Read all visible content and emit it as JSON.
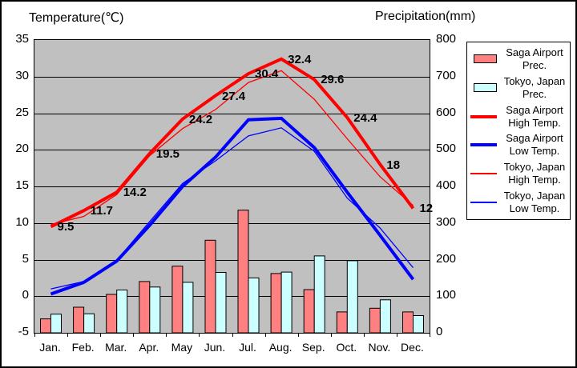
{
  "page": {
    "background": "#FFFFFF",
    "frame_border_color": "#000000"
  },
  "chart_data": {
    "type": "combo-bar-line",
    "categories": [
      "Jan.",
      "Feb.",
      "Mar.",
      "Apr.",
      "May",
      "Jun.",
      "Jul.",
      "Aug.",
      "Sep.",
      "Oct.",
      "Nov.",
      "Dec."
    ],
    "temp_axis": {
      "title": "Temperature(℃)",
      "side": "left",
      "min": -5,
      "max": 35,
      "step": 5,
      "ticks": [
        35,
        30,
        25,
        20,
        15,
        10,
        5,
        0,
        -5
      ]
    },
    "precip_axis": {
      "title": "Precipitation(mm)",
      "side": "right",
      "min": 0,
      "max": 800,
      "step": 100,
      "ticks": [
        800,
        700,
        600,
        500,
        400,
        300,
        200,
        100,
        0
      ]
    },
    "plot_background": "#C0C0C0",
    "gridline_color": "#000000",
    "grid": "horizontal",
    "legend_position": "right",
    "series": [
      {
        "name": "Saga Airport Prec.",
        "legend_lines": [
          "Saga Airport",
          "Prec."
        ],
        "type": "bar",
        "axis": "precip",
        "color": "#FF8080",
        "values": [
          38,
          70,
          105,
          140,
          182,
          253,
          335,
          162,
          118,
          57,
          67,
          57
        ]
      },
      {
        "name": "Tokyo, Japan Prec.",
        "legend_lines": [
          "Tokyo, Japan",
          "Prec."
        ],
        "type": "bar",
        "axis": "precip",
        "color": "#CCFFFF",
        "values": [
          51,
          52,
          117,
          125,
          138,
          165,
          150,
          166,
          210,
          197,
          90,
          47
        ]
      },
      {
        "name": "Saga Airport High Temp.",
        "legend_lines": [
          "Saga Airport",
          "High Temp."
        ],
        "type": "line",
        "axis": "temp",
        "color": "#FF0000",
        "thickness": "thick",
        "values": [
          9.5,
          11.7,
          14.2,
          19.5,
          24.2,
          27.4,
          30.4,
          32.4,
          29.6,
          24.4,
          18,
          12
        ],
        "point_labels": [
          "9.5",
          "11.7",
          "14.2",
          "19.5",
          "24.2",
          "27.4",
          "30.4",
          "32.4",
          "29.6",
          "24.4",
          "18",
          "12"
        ]
      },
      {
        "name": "Saga Airport Low Temp.",
        "legend_lines": [
          "Saga Airport",
          "Low Temp."
        ],
        "type": "line",
        "axis": "temp",
        "color": "#0000FF",
        "thickness": "thick",
        "values": [
          0.3,
          1.9,
          4.8,
          9.7,
          15.0,
          19.0,
          24.1,
          24.3,
          20.3,
          14.2,
          8.3,
          2.3
        ]
      },
      {
        "name": "Tokyo, Japan High Temp.",
        "legend_lines": [
          "Tokyo, Japan",
          "High Temp."
        ],
        "type": "line",
        "axis": "temp",
        "color": "#FF0000",
        "thickness": "thin",
        "values": [
          9.8,
          10.9,
          13.9,
          19.2,
          22.9,
          25.5,
          29.2,
          30.8,
          26.9,
          21.5,
          16.3,
          12.4
        ]
      },
      {
        "name": "Tokyo, Japan Low Temp.",
        "legend_lines": [
          "Tokyo, Japan",
          "Low Temp."
        ],
        "type": "line",
        "axis": "temp",
        "color": "#0000FF",
        "thickness": "thin",
        "values": [
          1.0,
          2.0,
          4.9,
          10.2,
          15.4,
          18.5,
          21.9,
          23.0,
          19.8,
          13.4,
          9.3,
          3.9
        ]
      }
    ]
  }
}
